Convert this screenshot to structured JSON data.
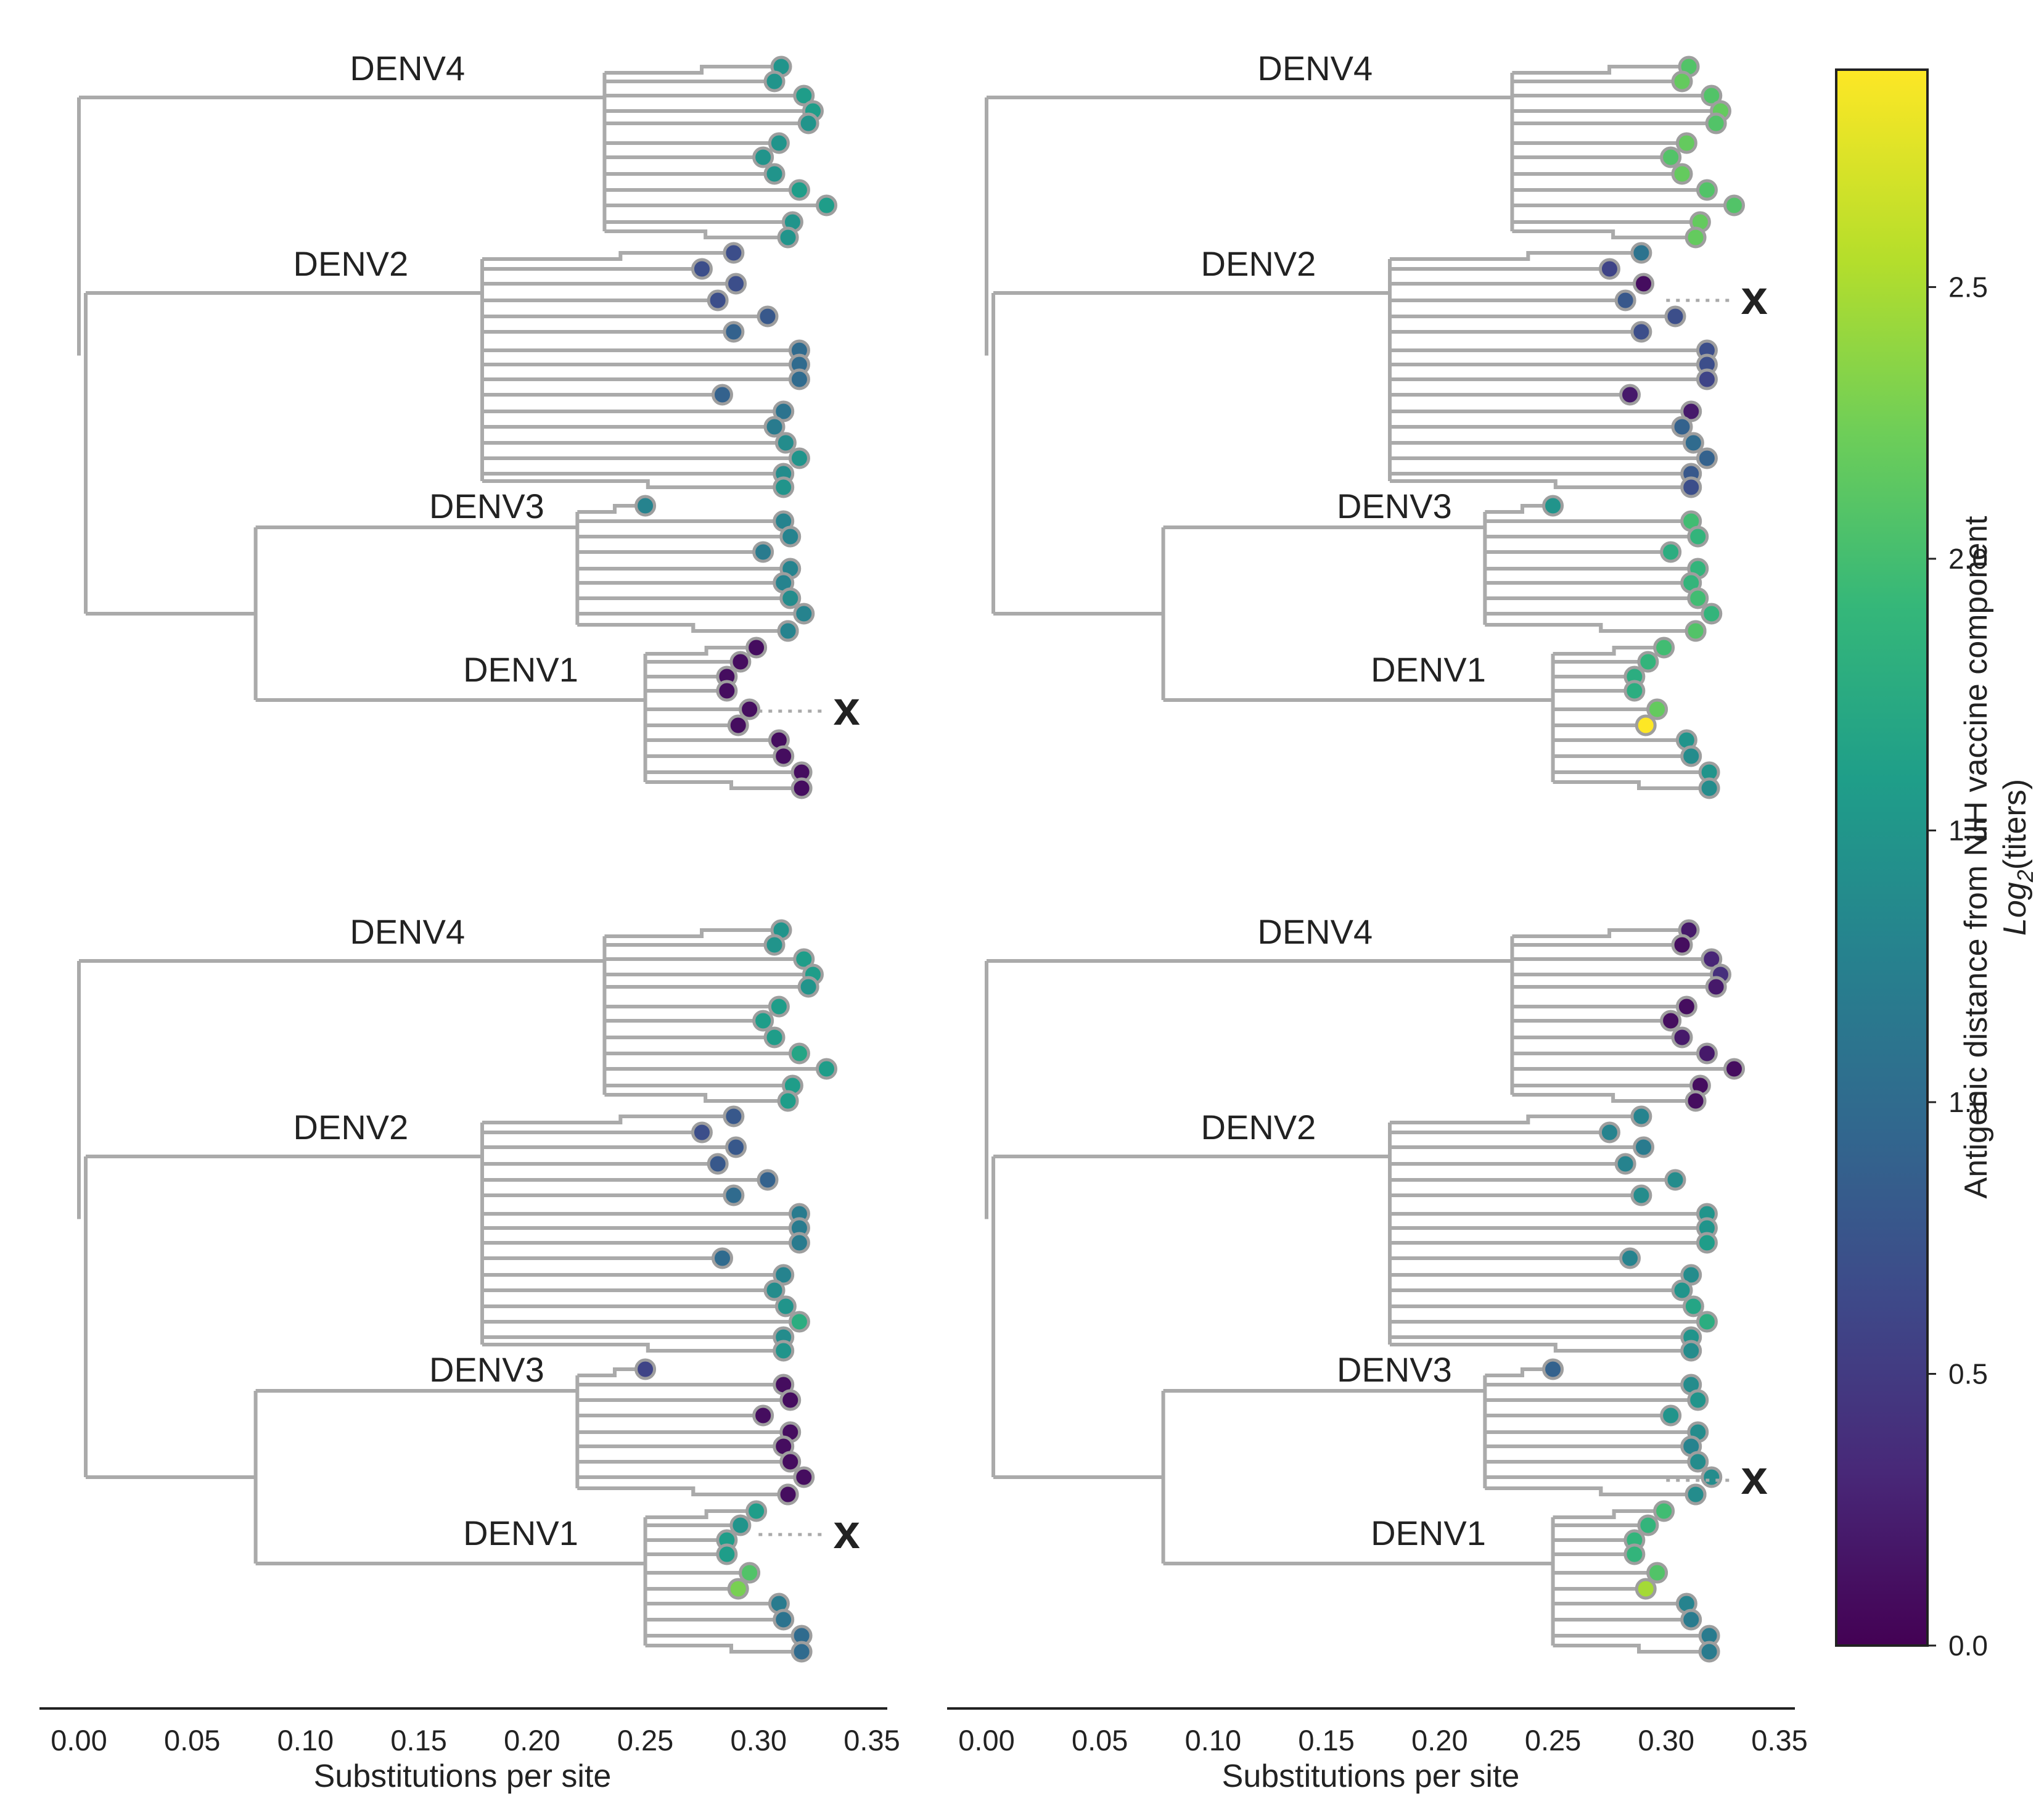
{
  "chart_data": [
    {
      "type": "tree",
      "panel": "top-left",
      "clade_labels": [
        "DENV4",
        "DENV2",
        "DENV3",
        "DENV1"
      ],
      "xlabel": "Substitutions per site",
      "xlim": [
        0,
        0.35
      ],
      "x_ticks": [
        "0.00",
        "0.05",
        "0.10",
        "0.15",
        "0.20",
        "0.25",
        "0.30",
        "0.35"
      ],
      "x_tick_values": [
        0,
        0.05,
        0.1,
        0.15,
        0.2,
        0.25,
        0.3,
        0.35
      ],
      "excluded_marker": "x",
      "excluded_clade": "DENV1",
      "tip_values": {
        "DENV4": [
          1.5,
          1.5,
          1.6,
          1.6,
          1.5,
          1.5,
          1.5,
          1.5,
          1.6,
          1.6,
          1.5,
          1.5
        ],
        "DENV2": [
          0.7,
          0.7,
          0.7,
          0.7,
          0.8,
          0.9,
          1.0,
          1.0,
          1.0,
          0.9,
          1.1,
          1.2,
          1.4,
          1.5,
          1.4,
          1.5
        ],
        "DENV3": [
          1.3,
          1.3,
          1.3,
          1.2,
          1.3,
          1.3,
          1.4,
          1.3,
          1.4,
          1.3
        ],
        "DENV1": [
          0.1,
          0.1,
          0.1,
          0.1,
          0.1,
          0.1,
          0.1,
          0.1,
          0.1,
          0.1
        ]
      }
    },
    {
      "type": "tree",
      "panel": "top-right",
      "clade_labels": [
        "DENV4",
        "DENV2",
        "DENV3",
        "DENV1"
      ],
      "xlabel": "Substitutions per site",
      "xlim": [
        0,
        0.35
      ],
      "x_ticks": [
        "0.00",
        "0.05",
        "0.10",
        "0.15",
        "0.20",
        "0.25",
        "0.30",
        "0.35"
      ],
      "x_tick_values": [
        0,
        0.05,
        0.1,
        0.15,
        0.2,
        0.25,
        0.3,
        0.35
      ],
      "excluded_marker": "x",
      "excluded_clade": "DENV2",
      "tip_values": {
        "DENV4": [
          2.1,
          2.2,
          2.1,
          2.2,
          2.1,
          2.2,
          2.1,
          2.2,
          2.1,
          2.1,
          2.2,
          2.2
        ],
        "DENV2": [
          1.1,
          0.6,
          0.1,
          0.8,
          0.7,
          0.7,
          0.7,
          0.7,
          0.6,
          0.2,
          0.2,
          0.9,
          1.0,
          0.9,
          0.8,
          0.7
        ],
        "DENV3": [
          1.5,
          2.0,
          1.9,
          1.8,
          1.9,
          1.9,
          2.0,
          1.9,
          2.0,
          2.1
        ],
        "DENV1": [
          2.0,
          1.9,
          1.8,
          1.8,
          2.2,
          2.9,
          1.5,
          1.4,
          1.5,
          1.4
        ]
      }
    },
    {
      "type": "tree",
      "panel": "bottom-left",
      "clade_labels": [
        "DENV4",
        "DENV2",
        "DENV3",
        "DENV1"
      ],
      "xlabel": "Substitutions per site",
      "xlim": [
        0,
        0.35
      ],
      "x_ticks": [
        "0.00",
        "0.05",
        "0.10",
        "0.15",
        "0.20",
        "0.25",
        "0.30",
        "0.35"
      ],
      "x_tick_values": [
        0,
        0.05,
        0.1,
        0.15,
        0.2,
        0.25,
        0.3,
        0.35
      ],
      "excluded_marker": "x",
      "excluded_clade": "DENV3",
      "tip_values": {
        "DENV4": [
          1.5,
          1.5,
          1.6,
          1.6,
          1.5,
          1.6,
          1.6,
          1.6,
          1.7,
          1.6,
          1.6,
          1.6
        ],
        "DENV2": [
          0.8,
          0.7,
          0.8,
          0.8,
          0.9,
          1.0,
          1.2,
          1.2,
          1.2,
          1.0,
          1.3,
          1.4,
          1.5,
          1.8,
          1.4,
          1.5
        ],
        "DENV3": [
          0.6,
          0.1,
          0.1,
          0.1,
          0.1,
          0.1,
          0.1,
          0.1,
          0.1,
          0.1
        ],
        "DENV1": [
          1.6,
          1.5,
          1.6,
          1.6,
          2.1,
          2.3,
          1.2,
          1.1,
          1.0,
          1.0
        ]
      }
    },
    {
      "type": "tree",
      "panel": "bottom-right",
      "clade_labels": [
        "DENV4",
        "DENV2",
        "DENV3",
        "DENV1"
      ],
      "xlabel": "Substitutions per site",
      "xlim": [
        0,
        0.35
      ],
      "x_ticks": [
        "0.00",
        "0.05",
        "0.10",
        "0.15",
        "0.20",
        "0.25",
        "0.30",
        "0.35"
      ],
      "x_tick_values": [
        0,
        0.05,
        0.1,
        0.15,
        0.2,
        0.25,
        0.3,
        0.35
      ],
      "excluded_marker": "x",
      "excluded_clade": "DENV4",
      "tip_values": {
        "DENV4": [
          0.2,
          0.1,
          0.3,
          0.4,
          0.2,
          0.1,
          0.1,
          0.2,
          0.2,
          0.1,
          0.1,
          0.1
        ],
        "DENV2": [
          1.3,
          1.3,
          1.2,
          1.3,
          1.4,
          1.4,
          1.5,
          1.5,
          1.6,
          1.3,
          1.4,
          1.5,
          1.7,
          1.8,
          1.5,
          1.4
        ],
        "DENV3": [
          0.9,
          1.4,
          1.5,
          1.5,
          1.4,
          1.3,
          1.4,
          1.4,
          1.3,
          1.4
        ],
        "DENV1": [
          2.0,
          1.9,
          1.9,
          1.9,
          2.1,
          2.5,
          1.3,
          1.2,
          1.2,
          1.2
        ]
      }
    }
  ],
  "colorbar": {
    "colormap": "viridis",
    "range": [
      0,
      2.9
    ],
    "ticks": [
      "0.0",
      "0.5",
      "1.0",
      "1.5",
      "2.0",
      "2.5"
    ],
    "tick_values": [
      0,
      0.5,
      1.0,
      1.5,
      2.0,
      2.5
    ],
    "label_line1": "Antigenic distance from NIH vaccine component",
    "label_line2_prefix": "Log",
    "label_line2_sub": "2",
    "label_line2_suffix": "(titers)"
  },
  "colors": {
    "branch": "#aaaaaa",
    "tip_outline": "#9e9e9e",
    "axis": "#222222",
    "viridis": [
      "#440154",
      "#482878",
      "#3e4989",
      "#31688e",
      "#26828e",
      "#1f9e89",
      "#35b779",
      "#6ece58",
      "#b5de2b",
      "#fde725"
    ]
  }
}
